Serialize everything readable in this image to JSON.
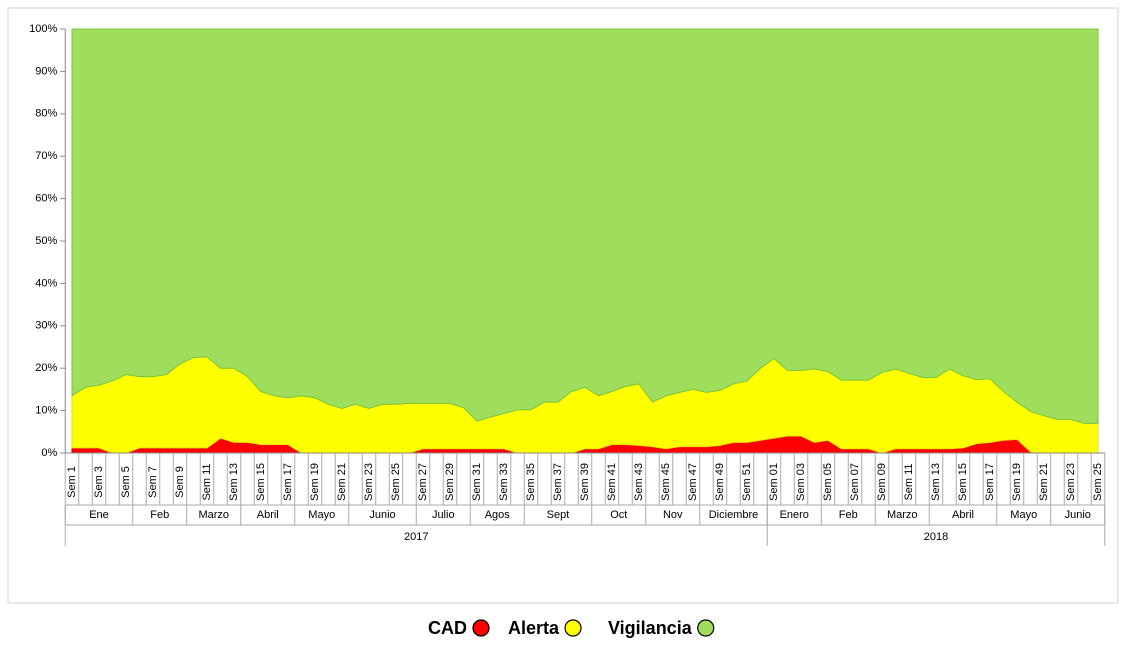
{
  "chart_data": {
    "type": "stacked_area_percent",
    "categories": [
      "Sem 1",
      null,
      "Sem 3",
      null,
      "Sem 5",
      null,
      "Sem 7",
      null,
      "Sem 9",
      null,
      "Sem 11",
      null,
      "Sem 13",
      null,
      "Sem 15",
      null,
      "Sem 17",
      null,
      "Sem 19",
      null,
      "Sem 21",
      null,
      "Sem 23",
      null,
      "Sem 25",
      null,
      "Sem 27",
      null,
      "Sem 29",
      null,
      "Sem 31",
      null,
      "Sem 33",
      null,
      "Sem 35",
      null,
      "Sem 37",
      null,
      "Sem 39",
      null,
      "Sem 41",
      null,
      "Sem 43",
      null,
      "Sem 45",
      null,
      "Sem 47",
      null,
      "Sem 49",
      null,
      "Sem 51",
      null,
      "Sem 01",
      null,
      "Sem 03",
      null,
      "Sem 05",
      null,
      "Sem 07",
      null,
      "Sem 09",
      null,
      "Sem 11",
      null,
      "Sem 13",
      null,
      "Sem 15",
      null,
      "Sem 17",
      null,
      "Sem 19",
      null,
      "Sem 21",
      null,
      "Sem 23",
      null,
      "Sem 25"
    ],
    "month_groups": [
      {
        "label": "Ene",
        "count": 5
      },
      {
        "label": "Feb",
        "count": 4
      },
      {
        "label": "Marzo",
        "count": 4
      },
      {
        "label": "Abril",
        "count": 4
      },
      {
        "label": "Mayo",
        "count": 4
      },
      {
        "label": "Junio",
        "count": 5
      },
      {
        "label": "Julio",
        "count": 4
      },
      {
        "label": "Agos",
        "count": 4
      },
      {
        "label": "Sept",
        "count": 5
      },
      {
        "label": "Oct",
        "count": 4
      },
      {
        "label": "Nov",
        "count": 4
      },
      {
        "label": "Diciembre",
        "count": 5
      },
      {
        "label": "Enero",
        "count": 4
      },
      {
        "label": "Feb",
        "count": 4
      },
      {
        "label": "Marzo",
        "count": 4
      },
      {
        "label": "Abril",
        "count": 5
      },
      {
        "label": "Mayo",
        "count": 4
      },
      {
        "label": "Junio",
        "count": 4
      }
    ],
    "year_groups": [
      {
        "label": "2017",
        "count": 52
      },
      {
        "label": "2018",
        "count": 25
      }
    ],
    "series": [
      {
        "name": "CAD",
        "color": "#ff0000",
        "values": [
          1.2,
          1.2,
          1.2,
          0,
          0,
          1.2,
          1.2,
          1.2,
          1.2,
          1.2,
          1.2,
          3.5,
          2.5,
          2.5,
          2,
          2,
          2,
          0,
          0,
          0,
          0,
          0,
          0,
          0,
          0,
          0,
          1,
          1,
          1,
          1,
          1,
          1,
          1,
          0,
          0,
          0,
          0,
          0,
          1,
          1,
          2,
          2,
          1.8,
          1.5,
          1,
          1.5,
          1.5,
          1.5,
          1.8,
          2.5,
          2.5,
          3,
          3.5,
          4,
          4,
          2.5,
          3,
          1,
          1,
          1,
          0,
          1,
          1,
          1,
          1,
          1,
          1.2,
          2.2,
          2.5,
          3,
          3.2,
          0.3,
          0,
          0,
          0,
          0,
          0
        ]
      },
      {
        "name": "Alerta",
        "color": "#ffff00",
        "values": [
          12.3,
          14.3,
          14.8,
          17,
          18.5,
          16.8,
          16.8,
          17.3,
          19.8,
          21.3,
          21.5,
          16.5,
          17.5,
          15.5,
          12.5,
          11.5,
          11,
          13.5,
          13,
          11.5,
          10.5,
          11.5,
          10.5,
          11.5,
          11.5,
          11.7,
          10.7,
          10.7,
          10.7,
          9.7,
          6.5,
          7.5,
          8.3,
          10.2,
          10.2,
          12,
          12,
          14.5,
          14.5,
          12.5,
          12.5,
          13.7,
          14.5,
          10.5,
          12.5,
          12.8,
          13.5,
          12.8,
          13,
          13.8,
          14.5,
          17,
          18.8,
          15.5,
          15.5,
          17.3,
          16.2,
          16.2,
          16.2,
          16.2,
          19,
          18.8,
          17.8,
          16.8,
          16.8,
          18.8,
          17,
          15.1,
          15,
          11.5,
          8.8,
          9.5,
          8.8,
          7.9,
          7.9,
          7,
          7
        ]
      },
      {
        "name": "Vigilancia",
        "color": "#9ede5c",
        "values": [
          86.5,
          84.5,
          84,
          83,
          81.5,
          82,
          82,
          81.5,
          79,
          77.5,
          77.3,
          80,
          80,
          82,
          85.5,
          86.5,
          87,
          86.5,
          87,
          88.5,
          89.5,
          88.5,
          89.5,
          88.5,
          88.5,
          88.3,
          88.3,
          88.3,
          88.3,
          89.3,
          92.5,
          91.5,
          90.7,
          89.8,
          89.8,
          88,
          88,
          85.5,
          84.5,
          86.5,
          85.5,
          84.3,
          83.7,
          88,
          86.5,
          85.7,
          85,
          85.7,
          85.2,
          83.7,
          83,
          80,
          77.7,
          80.5,
          80.5,
          80.2,
          80.8,
          82.8,
          82.8,
          82.8,
          81,
          80.2,
          81.2,
          82.2,
          82.2,
          80.2,
          81.8,
          82.7,
          82.5,
          85.5,
          88,
          90.2,
          91.2,
          92.1,
          92.1,
          93,
          93
        ]
      }
    ],
    "ylim": [
      0,
      100
    ],
    "yticks": [
      {
        "value": 0,
        "label": "0%"
      },
      {
        "value": 10,
        "label": "10%"
      },
      {
        "value": 20,
        "label": "20%"
      },
      {
        "value": 30,
        "label": "30%"
      },
      {
        "value": 40,
        "label": "40%"
      },
      {
        "value": 50,
        "label": "50%"
      },
      {
        "value": 60,
        "label": "60%"
      },
      {
        "value": 70,
        "label": "70%"
      },
      {
        "value": 80,
        "label": "80%"
      },
      {
        "value": 90,
        "label": "90%"
      },
      {
        "value": 100,
        "label": "100%"
      }
    ],
    "grid": false,
    "legend": "bottom"
  }
}
